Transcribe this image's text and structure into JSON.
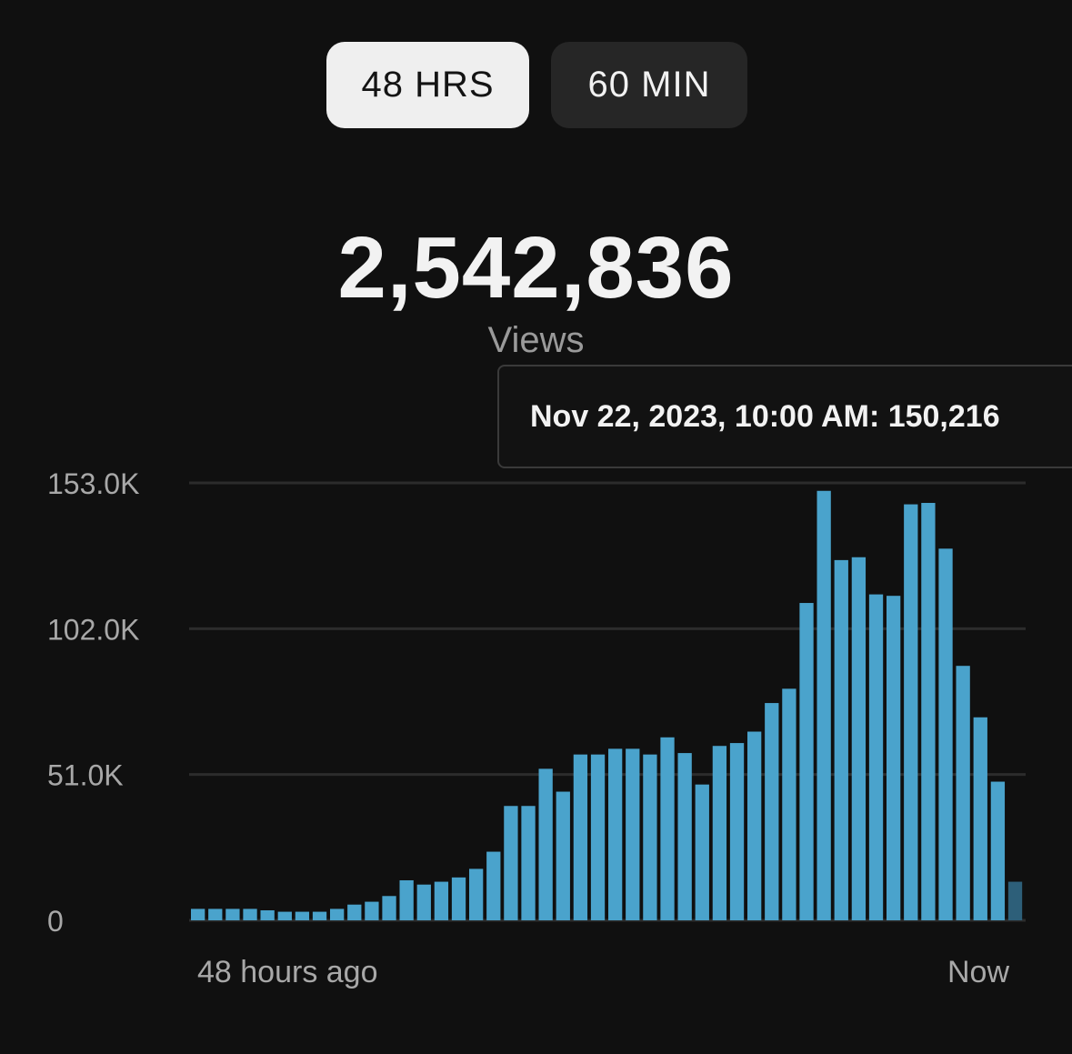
{
  "toggles": {
    "active_label": "48 HRS",
    "inactive_label": "60 MIN"
  },
  "summary": {
    "total": "2,542,836",
    "label": "Views"
  },
  "tooltip": {
    "text": "Nov 22, 2023, 10:00 AM: 150,216"
  },
  "colors": {
    "background": "#101010",
    "bar": "#4aa3cc",
    "bar_highlight": "#2d5f79",
    "gridline": "#2c2c2c",
    "axis_text": "#a8a8a8"
  },
  "chart_data": {
    "type": "bar",
    "x_start_label": "48 hours ago",
    "x_end_label": "Now",
    "ylim": [
      0,
      153000
    ],
    "yticks": [
      0,
      51000,
      102000,
      153000
    ],
    "ytick_labels": [
      "0",
      "51.0K",
      "102.0K",
      "153.0K"
    ],
    "grid": true,
    "values": [
      4000,
      4000,
      4000,
      4000,
      3500,
      3000,
      3000,
      3000,
      4000,
      5500,
      6500,
      8500,
      14000,
      12500,
      13500,
      15000,
      18000,
      24000,
      40000,
      40000,
      53000,
      45000,
      58000,
      58000,
      60000,
      60000,
      58000,
      64000,
      58500,
      47500,
      61000,
      62000,
      66000,
      76000,
      81000,
      111000,
      150216,
      126000,
      127000,
      114000,
      113500,
      145500,
      146000,
      130000,
      89000,
      71000,
      48500,
      13500
    ],
    "highlight_last": true
  }
}
